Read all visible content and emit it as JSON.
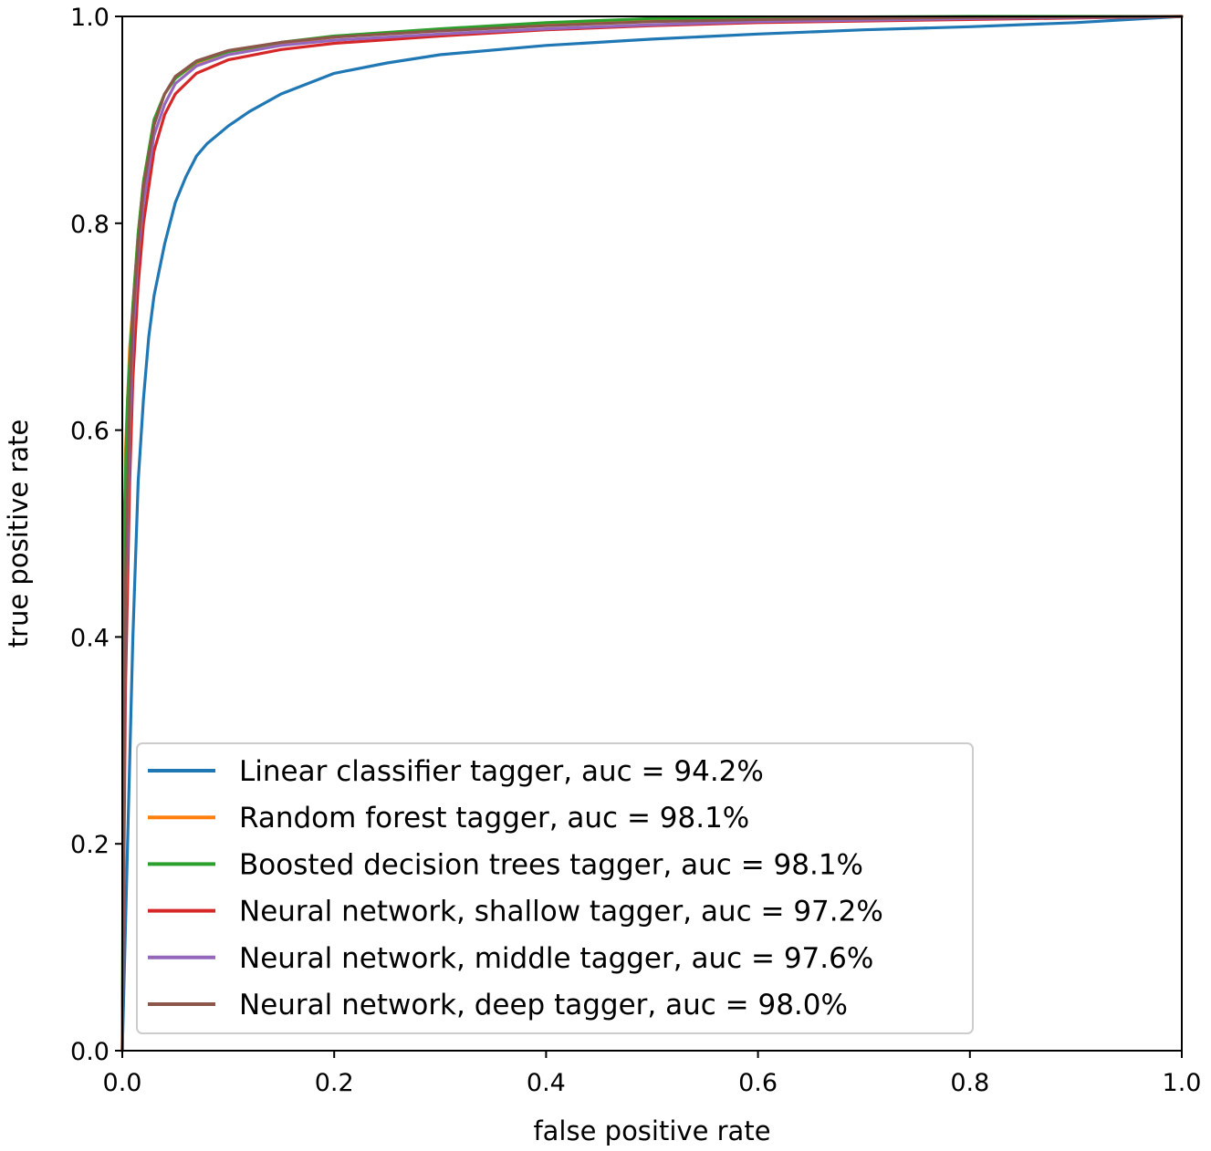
{
  "chart_data": {
    "type": "line",
    "title": "",
    "xlabel": "false positive rate",
    "ylabel": "true positive rate",
    "xlim": [
      0.0,
      1.0
    ],
    "ylim": [
      0.0,
      1.0
    ],
    "xticks": [
      "0.0",
      "0.2",
      "0.4",
      "0.6",
      "0.8",
      "1.0"
    ],
    "yticks": [
      "0.0",
      "0.2",
      "0.4",
      "0.6",
      "0.8",
      "1.0"
    ],
    "grid": false,
    "legend_position": "lower-right",
    "series": [
      {
        "name": "Linear classifier tagger, auc = 94.2%",
        "color": "#1f77b4",
        "x": [
          0.0,
          0.005,
          0.01,
          0.015,
          0.02,
          0.025,
          0.03,
          0.04,
          0.05,
          0.06,
          0.07,
          0.08,
          0.1,
          0.12,
          0.15,
          0.2,
          0.25,
          0.3,
          0.4,
          0.5,
          0.6,
          0.7,
          0.8,
          0.9,
          1.0
        ],
        "y": [
          0.0,
          0.2,
          0.4,
          0.55,
          0.63,
          0.69,
          0.73,
          0.78,
          0.82,
          0.845,
          0.865,
          0.877,
          0.894,
          0.908,
          0.925,
          0.945,
          0.955,
          0.963,
          0.972,
          0.978,
          0.983,
          0.987,
          0.99,
          0.994,
          1.0
        ]
      },
      {
        "name": "Random forest tagger, auc = 98.1%",
        "color": "#ff7f0e",
        "x": [
          0.0,
          0.003,
          0.007,
          0.01,
          0.015,
          0.02,
          0.03,
          0.04,
          0.05,
          0.07,
          0.1,
          0.15,
          0.2,
          0.3,
          0.4,
          0.5,
          0.6,
          0.8,
          1.0
        ],
        "y": [
          0.0,
          0.58,
          0.68,
          0.72,
          0.79,
          0.84,
          0.9,
          0.925,
          0.94,
          0.955,
          0.966,
          0.974,
          0.98,
          0.987,
          0.992,
          0.996,
          0.998,
          0.999,
          1.0
        ]
      },
      {
        "name": "Boosted decision trees tagger, auc = 98.1%",
        "color": "#2ca02c",
        "x": [
          0.0,
          0.002,
          0.005,
          0.01,
          0.015,
          0.02,
          0.03,
          0.04,
          0.05,
          0.07,
          0.1,
          0.15,
          0.2,
          0.3,
          0.4,
          0.5,
          0.6,
          0.8,
          1.0
        ],
        "y": [
          0.0,
          0.52,
          0.63,
          0.72,
          0.79,
          0.84,
          0.9,
          0.925,
          0.94,
          0.956,
          0.966,
          0.975,
          0.981,
          0.988,
          0.994,
          0.998,
          0.999,
          1.0,
          1.0
        ]
      },
      {
        "name": "Neural network, shallow tagger, auc = 97.2%",
        "color": "#d62728",
        "x": [
          0.0,
          0.003,
          0.007,
          0.01,
          0.015,
          0.02,
          0.03,
          0.04,
          0.05,
          0.07,
          0.1,
          0.15,
          0.2,
          0.3,
          0.4,
          0.5,
          0.6,
          0.8,
          1.0
        ],
        "y": [
          0.0,
          0.35,
          0.55,
          0.65,
          0.74,
          0.8,
          0.87,
          0.905,
          0.925,
          0.945,
          0.958,
          0.968,
          0.974,
          0.981,
          0.987,
          0.991,
          0.994,
          0.997,
          1.0
        ]
      },
      {
        "name": "Neural network, middle tagger, auc = 97.6%",
        "color": "#9467bd",
        "x": [
          0.0,
          0.003,
          0.007,
          0.01,
          0.015,
          0.02,
          0.03,
          0.04,
          0.05,
          0.07,
          0.1,
          0.15,
          0.2,
          0.3,
          0.4,
          0.5,
          0.6,
          0.8,
          1.0
        ],
        "y": [
          0.0,
          0.42,
          0.6,
          0.69,
          0.77,
          0.82,
          0.885,
          0.915,
          0.935,
          0.952,
          0.963,
          0.972,
          0.977,
          0.983,
          0.988,
          0.992,
          0.995,
          0.998,
          1.0
        ]
      },
      {
        "name": "Neural network, deep tagger, auc = 98.0%",
        "color": "#8c564b",
        "x": [
          0.0,
          0.003,
          0.007,
          0.01,
          0.015,
          0.02,
          0.03,
          0.04,
          0.05,
          0.07,
          0.1,
          0.15,
          0.2,
          0.3,
          0.4,
          0.5,
          0.6,
          0.8,
          1.0
        ],
        "y": [
          0.0,
          0.45,
          0.63,
          0.71,
          0.78,
          0.835,
          0.895,
          0.925,
          0.942,
          0.957,
          0.967,
          0.975,
          0.98,
          0.986,
          0.991,
          0.995,
          0.997,
          0.999,
          1.0
        ]
      }
    ]
  }
}
